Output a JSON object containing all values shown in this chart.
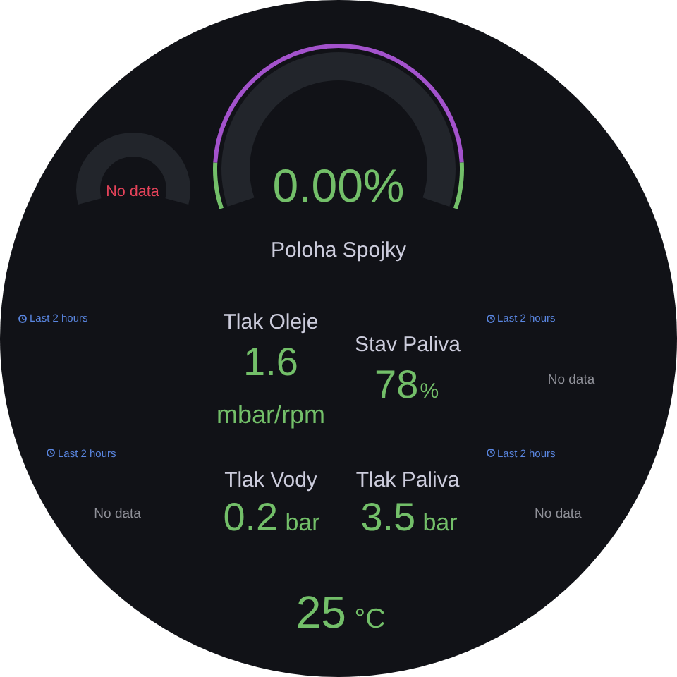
{
  "chart_data": [
    {
      "type": "other",
      "annotations": [
        "No data"
      ]
    },
    {
      "type": "other",
      "title": "Poloha Spojky",
      "values": [
        0
      ],
      "value_labels": [
        "0.00%"
      ],
      "color": "#73bf69"
    },
    {
      "type": "other",
      "annotations": [
        "Last 2 hours"
      ]
    },
    {
      "type": "other",
      "title": "Tlak Oleje",
      "values": [
        1.6
      ],
      "data_labels": true,
      "annotations": [
        "mbar/rpm"
      ],
      "color": "#73bf69"
    },
    {
      "type": "other",
      "title": "Stav Paliva",
      "values": [
        78
      ],
      "data_labels": true,
      "annotations": [
        "%"
      ],
      "color": "#73bf69"
    },
    {
      "type": "other",
      "annotations": [
        "Last 2 hours",
        "No data"
      ]
    },
    {
      "type": "other",
      "annotations": [
        "Last 2 hours",
        "No data"
      ]
    },
    {
      "type": "other",
      "title": "Tlak Vody",
      "values": [
        0.2
      ],
      "data_labels": true,
      "annotations": [
        "bar"
      ],
      "color": "#73bf69"
    },
    {
      "type": "other",
      "title": "Tlak Paliva",
      "values": [
        3.5
      ],
      "data_labels": true,
      "annotations": [
        "bar"
      ],
      "color": "#73bf69"
    },
    {
      "type": "other",
      "annotations": [
        "Last 2 hours",
        "No data"
      ]
    },
    {
      "type": "other",
      "values": [
        25
      ],
      "data_labels": true,
      "annotations": [
        "°C"
      ],
      "color": "#73bf69"
    }
  ]
}
